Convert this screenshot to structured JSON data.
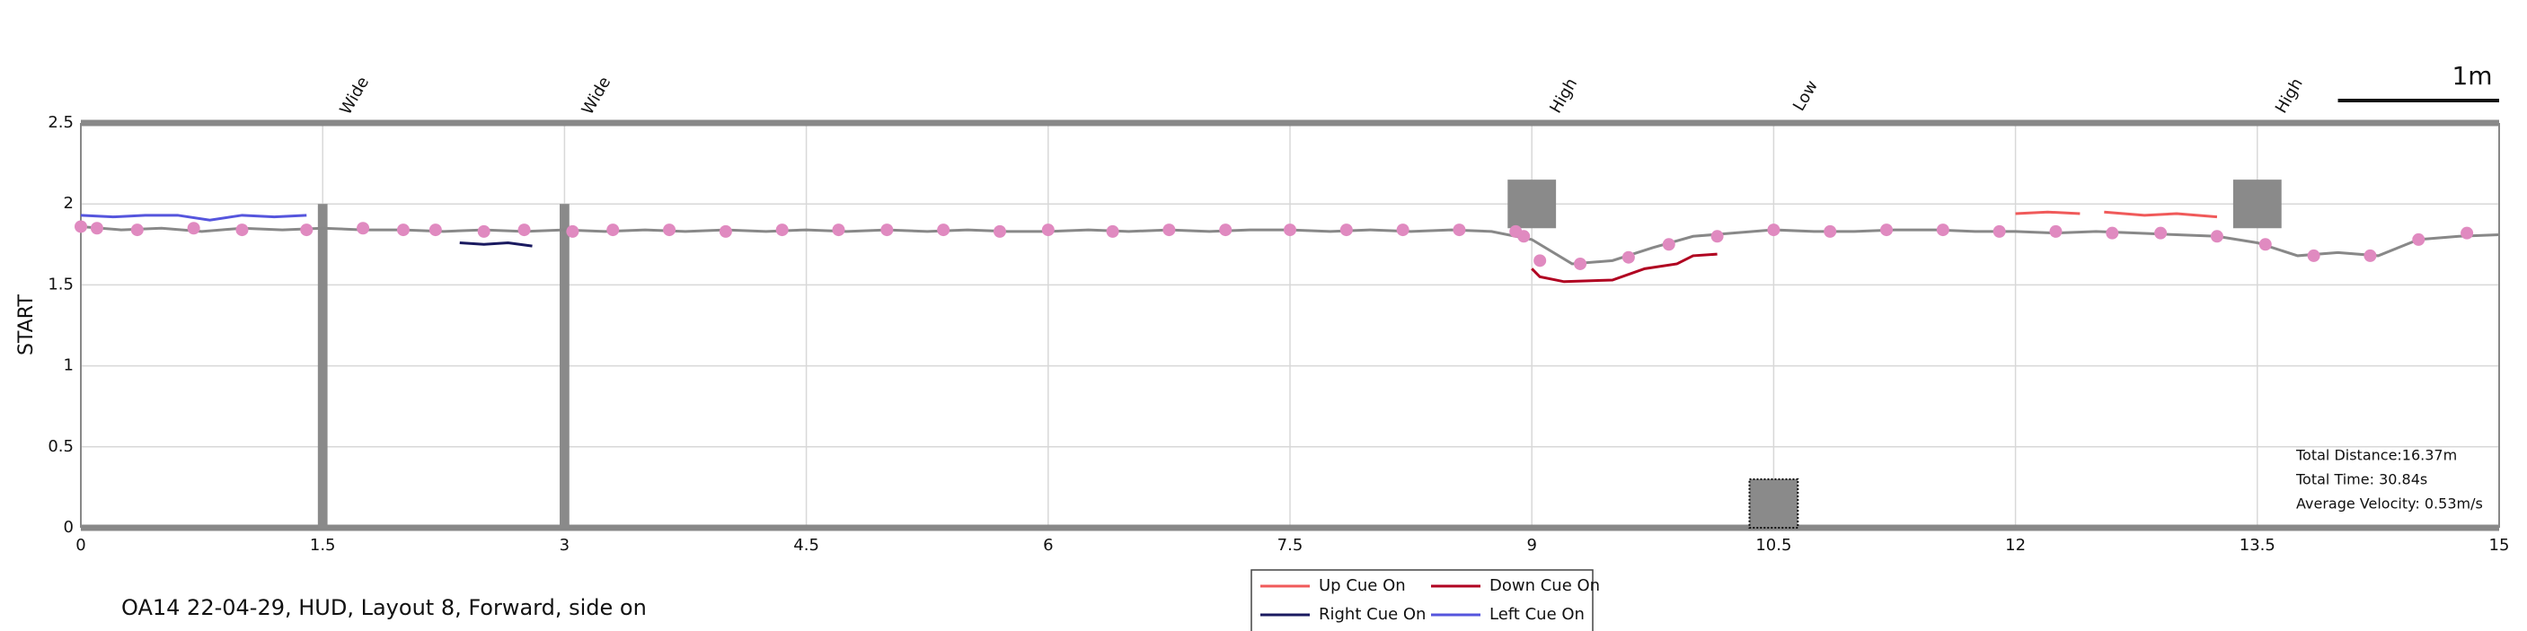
{
  "chart_data": {
    "type": "line",
    "ylabel": "START",
    "caption": "OA14 22-04-29, HUD, Layout 8, Forward, side on",
    "xlim": [
      0,
      15
    ],
    "xticks": [
      0,
      1.5,
      3,
      4.5,
      6,
      7.5,
      9,
      10.5,
      12,
      13.5,
      15
    ],
    "ylim": [
      0,
      2.5
    ],
    "yticks": [
      0,
      0.5,
      1,
      1.5,
      2,
      2.5
    ],
    "grid": true,
    "legend": "bottom",
    "trajectory": {
      "color": "#888888",
      "x": [
        0,
        0.25,
        0.5,
        0.75,
        1,
        1.25,
        1.5,
        1.75,
        2,
        2.25,
        2.5,
        2.75,
        3,
        3.25,
        3.5,
        3.75,
        4,
        4.25,
        4.5,
        4.75,
        5,
        5.25,
        5.5,
        5.75,
        6,
        6.25,
        6.5,
        6.75,
        7,
        7.25,
        7.5,
        7.75,
        8,
        8.25,
        8.5,
        8.75,
        9,
        9.25,
        9.5,
        9.75,
        10,
        10.25,
        10.5,
        10.75,
        11,
        11.25,
        11.5,
        11.75,
        12,
        12.25,
        12.5,
        12.75,
        13,
        13.25,
        13.5,
        13.75,
        14,
        14.25,
        14.5,
        14.75,
        15
      ],
      "values": [
        1.86,
        1.84,
        1.85,
        1.83,
        1.85,
        1.84,
        1.85,
        1.84,
        1.84,
        1.83,
        1.84,
        1.83,
        1.84,
        1.83,
        1.84,
        1.83,
        1.84,
        1.83,
        1.84,
        1.83,
        1.84,
        1.83,
        1.84,
        1.83,
        1.83,
        1.84,
        1.83,
        1.84,
        1.83,
        1.84,
        1.84,
        1.83,
        1.84,
        1.83,
        1.84,
        1.83,
        1.78,
        1.63,
        1.65,
        1.73,
        1.8,
        1.82,
        1.84,
        1.83,
        1.83,
        1.84,
        1.84,
        1.83,
        1.83,
        1.82,
        1.83,
        1.82,
        1.81,
        1.8,
        1.76,
        1.68,
        1.7,
        1.68,
        1.78,
        1.8,
        1.81
      ]
    },
    "markers": {
      "color": "#e08ac0",
      "x": [
        0,
        0.1,
        0.35,
        0.7,
        1,
        1.4,
        1.75,
        2,
        2.2,
        2.5,
        2.75,
        3.05,
        3.3,
        3.65,
        4,
        4.35,
        4.7,
        5,
        5.35,
        5.7,
        6,
        6.4,
        6.75,
        7.1,
        7.5,
        7.85,
        8.2,
        8.55,
        8.9,
        8.95,
        9.05,
        9.3,
        9.6,
        9.85,
        10.15,
        10.5,
        10.85,
        11.2,
        11.55,
        11.9,
        12.25,
        12.6,
        12.9,
        13.25,
        13.55,
        13.85,
        14.2,
        14.5,
        14.8
      ],
      "values": [
        1.86,
        1.85,
        1.84,
        1.85,
        1.84,
        1.84,
        1.85,
        1.84,
        1.84,
        1.83,
        1.84,
        1.83,
        1.84,
        1.84,
        1.83,
        1.84,
        1.84,
        1.84,
        1.84,
        1.83,
        1.84,
        1.83,
        1.84,
        1.84,
        1.84,
        1.84,
        1.84,
        1.84,
        1.83,
        1.8,
        1.65,
        1.63,
        1.67,
        1.75,
        1.8,
        1.84,
        1.83,
        1.84,
        1.84,
        1.83,
        1.83,
        1.82,
        1.82,
        1.8,
        1.75,
        1.68,
        1.68,
        1.78,
        1.82
      ]
    },
    "series": [
      {
        "name": "Up Cue On",
        "color": "#f05a5a",
        "x": [
          12,
          12.2,
          12.4,
          12.5,
          12.55,
          12.8,
          13,
          13.25
        ],
        "values": [
          1.94,
          1.95,
          1.94,
          null,
          1.95,
          1.93,
          1.94,
          1.92
        ]
      },
      {
        "name": "Right Cue On",
        "color": "#1a1a60",
        "x": [
          2.35,
          2.5,
          2.65,
          2.8
        ],
        "values": [
          1.76,
          1.75,
          1.76,
          1.74
        ]
      },
      {
        "name": "Down Cue On",
        "color": "#b00020",
        "x": [
          9,
          9.05,
          9.2,
          9.5,
          9.7,
          9.9,
          10,
          10.15
        ],
        "values": [
          1.6,
          1.55,
          1.52,
          1.53,
          1.6,
          1.63,
          1.68,
          1.69
        ]
      },
      {
        "name": "Left Cue On",
        "color": "#5555dd",
        "x": [
          0,
          0.2,
          0.4,
          0.6,
          0.8,
          1,
          1.2,
          1.4
        ],
        "values": [
          1.93,
          1.92,
          1.93,
          1.93,
          1.9,
          1.93,
          1.92,
          1.93
        ]
      }
    ],
    "obstacles": [
      {
        "x": [
          1.47,
          1.53
        ],
        "y": [
          0,
          2
        ],
        "style": "solid"
      },
      {
        "x": [
          2.97,
          3.03
        ],
        "y": [
          0,
          2
        ],
        "style": "solid"
      },
      {
        "x": [
          8.85,
          9.15
        ],
        "y": [
          1.85,
          2.15
        ],
        "style": "solid"
      },
      {
        "x": [
          13.35,
          13.65
        ],
        "y": [
          1.85,
          2.15
        ],
        "style": "solid"
      },
      {
        "x": [
          10.35,
          10.65
        ],
        "y": [
          0,
          0.3
        ],
        "style": "dotted"
      }
    ],
    "annotations": [
      {
        "x": 1.5,
        "label": "Wide"
      },
      {
        "x": 3,
        "label": "Wide"
      },
      {
        "x": 9,
        "label": "High"
      },
      {
        "x": 10.5,
        "label": "Low"
      },
      {
        "x": 13.5,
        "label": "High"
      }
    ],
    "scale_bar": {
      "label": "1m",
      "length": 1
    },
    "stats": [
      "Total Distance:16.37m",
      "Total Time: 30.84s",
      "Average Velocity: 0.53m/s"
    ]
  }
}
